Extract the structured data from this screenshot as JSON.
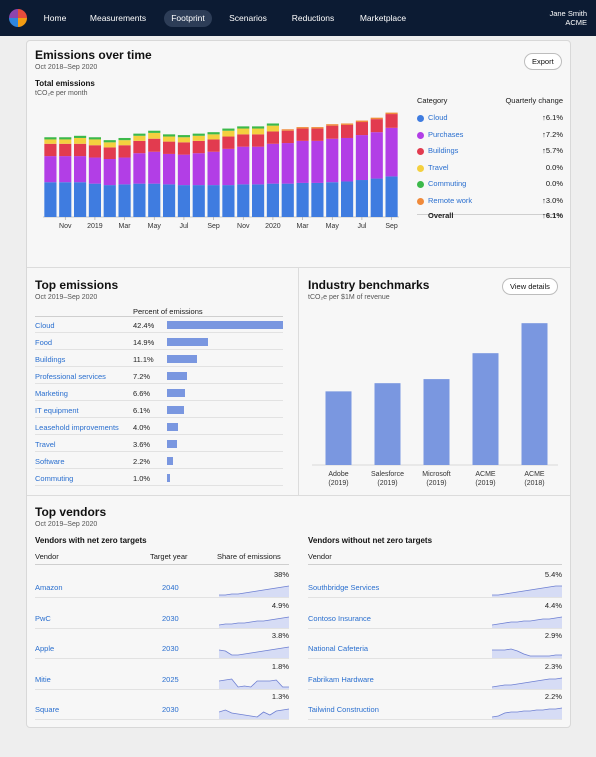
{
  "nav": {
    "items": [
      "Home",
      "Measurements",
      "Footprint",
      "Scenarios",
      "Reductions",
      "Marketplace"
    ],
    "active": "Footprint",
    "user_name": "Jane Smith",
    "org": "ACME"
  },
  "emissions": {
    "title": "Emissions over time",
    "range": "Oct 2018–Sep 2020",
    "export_label": "Export",
    "chart_title": "Total emissions",
    "chart_unit": "tCO₂e per month",
    "legend_header_category": "Category",
    "legend_header_change": "Quarterly change",
    "legend": [
      {
        "label": "Cloud",
        "change": "↑6.1%",
        "color": "#3f7ce0"
      },
      {
        "label": "Purchases",
        "change": "↑7.2%",
        "color": "#b23ee6"
      },
      {
        "label": "Buildings",
        "change": "↑5.7%",
        "color": "#e23b4f"
      },
      {
        "label": "Travel",
        "change": "0.0%",
        "color": "#f4d03f"
      },
      {
        "label": "Commuting",
        "change": "0.0%",
        "color": "#3cb94a"
      },
      {
        "label": "Remote work",
        "change": "↑3.0%",
        "color": "#f08a3a"
      }
    ],
    "overall_label": "Overall",
    "overall_change": "↑6.1%"
  },
  "chart_data": {
    "type": "bar",
    "stacked": true,
    "categories": [
      "Oct 2018",
      "Nov",
      "Dec",
      "2019",
      "Feb",
      "Mar",
      "Apr",
      "May",
      "Jun",
      "Jul",
      "Aug",
      "Sep",
      "Oct",
      "Nov",
      "Dec",
      "2020",
      "Feb",
      "Mar",
      "Apr",
      "May",
      "Jun",
      "Jul",
      "Aug",
      "Sep"
    ],
    "x_tick_labels": [
      "Nov",
      "2019",
      "Mar",
      "May",
      "Jul",
      "Sep",
      "Nov",
      "2020",
      "Mar",
      "May",
      "Jul",
      "Sep"
    ],
    "series": [
      {
        "name": "Cloud",
        "color": "#3f7ce0",
        "values": [
          48,
          48,
          48,
          46,
          44,
          45,
          46,
          46,
          45,
          44,
          44,
          44,
          44,
          45,
          45,
          46,
          46,
          47,
          47,
          48,
          49,
          51,
          53,
          56
        ]
      },
      {
        "name": "Purchases",
        "color": "#b23ee6",
        "values": [
          36,
          36,
          36,
          36,
          36,
          37,
          42,
          44,
          42,
          42,
          44,
          46,
          50,
          52,
          52,
          55,
          56,
          58,
          58,
          60,
          60,
          62,
          64,
          67
        ]
      },
      {
        "name": "Buildings",
        "color": "#e23b4f",
        "values": [
          17,
          17,
          17,
          17,
          16,
          17,
          17,
          18,
          17,
          17,
          17,
          17,
          17,
          17,
          17,
          17,
          17,
          17,
          17,
          18,
          18,
          18,
          18,
          19
        ]
      },
      {
        "name": "Travel",
        "color": "#f4d03f",
        "values": [
          6,
          6,
          8,
          8,
          7,
          7,
          7,
          8,
          7,
          7,
          7,
          7,
          8,
          8,
          8,
          8,
          0,
          0,
          0,
          0,
          0,
          0,
          0,
          0
        ]
      },
      {
        "name": "Commuting",
        "color": "#3cb94a",
        "values": [
          3,
          3,
          3,
          3,
          3,
          3,
          3,
          3,
          3,
          3,
          3,
          3,
          3,
          3,
          3,
          3,
          0,
          0,
          0,
          0,
          0,
          0,
          0,
          0
        ]
      },
      {
        "name": "Remote work",
        "color": "#f08a3a",
        "values": [
          0,
          0,
          0,
          0,
          0,
          0,
          0,
          0,
          0,
          0,
          0,
          0,
          0,
          0,
          0,
          0,
          2,
          2,
          2,
          2,
          2,
          2,
          2,
          2
        ]
      }
    ]
  },
  "top_emissions": {
    "title": "Top emissions",
    "range": "Oct 2019–Sep 2020",
    "col_header": "Percent of emissions",
    "rows": [
      {
        "name": "Cloud",
        "pct": "42.4%",
        "value": 42.4
      },
      {
        "name": "Food",
        "pct": "14.9%",
        "value": 14.9
      },
      {
        "name": "Buildings",
        "pct": "11.1%",
        "value": 11.1
      },
      {
        "name": "Professional services",
        "pct": "7.2%",
        "value": 7.2
      },
      {
        "name": "Marketing",
        "pct": "6.6%",
        "value": 6.6
      },
      {
        "name": "IT equipment",
        "pct": "6.1%",
        "value": 6.1
      },
      {
        "name": "Leasehold improvements",
        "pct": "4.0%",
        "value": 4.0
      },
      {
        "name": "Travel",
        "pct": "3.6%",
        "value": 3.6
      },
      {
        "name": "Software",
        "pct": "2.2%",
        "value": 2.2
      },
      {
        "name": "Commuting",
        "pct": "1.0%",
        "value": 1.0
      }
    ]
  },
  "benchmarks": {
    "title": "Industry benchmarks",
    "unit": "tCO₂e per $1M of revenue",
    "view_details_label": "View details",
    "bars": [
      {
        "name": "Adobe",
        "year": "(2019)",
        "value": 54
      },
      {
        "name": "Salesforce",
        "year": "(2019)",
        "value": 60
      },
      {
        "name": "Microsoft",
        "year": "(2019)",
        "value": 63
      },
      {
        "name": "ACME",
        "year": "(2019)",
        "value": 82
      },
      {
        "name": "ACME",
        "year": "(2018)",
        "value": 104
      }
    ]
  },
  "vendors": {
    "title": "Top vendors",
    "range": "Oct 2019–Sep 2020",
    "with_title": "Vendors with net zero targets",
    "without_title": "Vendors without net zero targets",
    "col_vendor": "Vendor",
    "col_target": "Target year",
    "col_share": "Share of emissions",
    "with": [
      {
        "name": "Amazon",
        "year": "2040",
        "pct": "38%"
      },
      {
        "name": "PwC",
        "year": "2030",
        "pct": "4.9%"
      },
      {
        "name": "Apple",
        "year": "2030",
        "pct": "3.8%"
      },
      {
        "name": "Mitie",
        "year": "2025",
        "pct": "1.8%"
      },
      {
        "name": "Square",
        "year": "2030",
        "pct": "1.3%"
      }
    ],
    "without": [
      {
        "name": "Southbridge Services",
        "pct": "5.4%"
      },
      {
        "name": "Contoso Insurance",
        "pct": "4.4%"
      },
      {
        "name": "National Cafeteria",
        "pct": "2.9%"
      },
      {
        "name": "Fabrikam Hardware",
        "pct": "2.3%"
      },
      {
        "name": "Tailwind Construction",
        "pct": "2.2%"
      }
    ]
  }
}
